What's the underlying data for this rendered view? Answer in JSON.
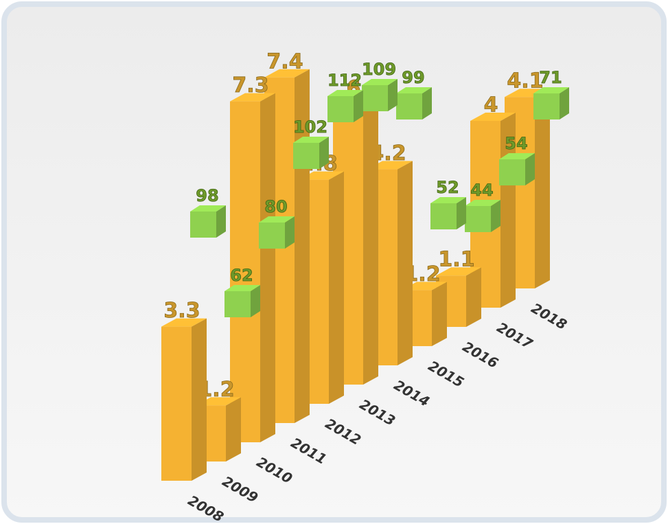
{
  "chart_data": {
    "type": "bar",
    "categories": [
      "2008",
      "2009",
      "2010",
      "2011",
      "2012",
      "2013",
      "2014",
      "2015",
      "2016",
      "2017",
      "2018"
    ],
    "series": [
      {
        "color": "#f5b232",
        "values": [
          3.3,
          1.2,
          7.3,
          7.4,
          4.8,
          6,
          4.2,
          1.2,
          1.1,
          4,
          4.1
        ]
      },
      {
        "color": "#8fd14f",
        "values": [
          98,
          62,
          80,
          102,
          112,
          109,
          99,
          52,
          44,
          54,
          71
        ]
      }
    ]
  }
}
